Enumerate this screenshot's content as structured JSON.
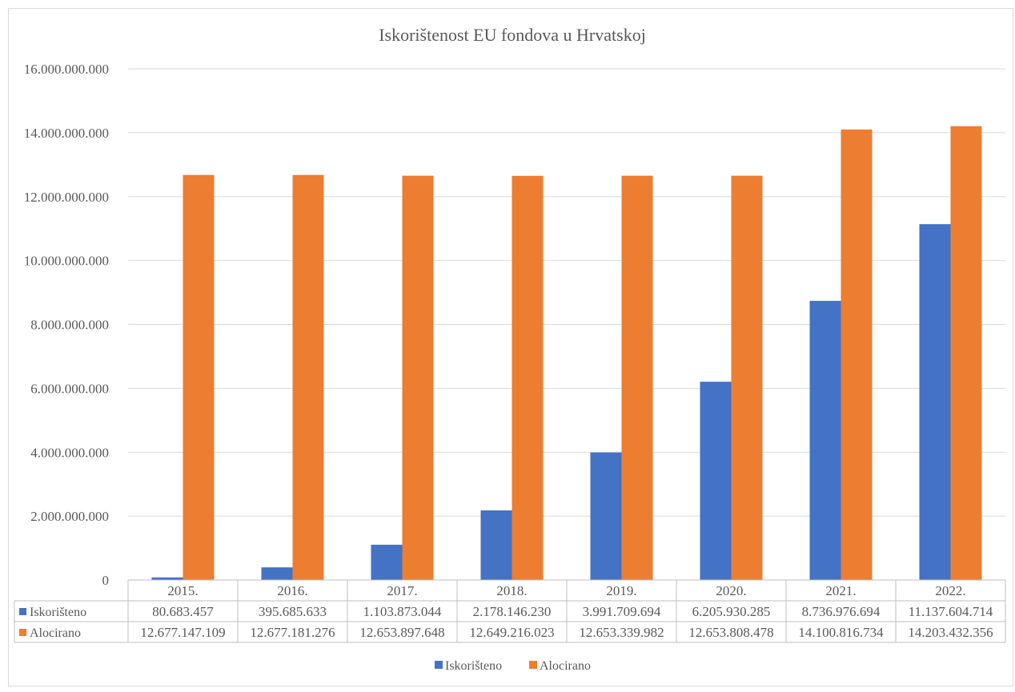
{
  "chart_data": {
    "type": "bar",
    "title": "Iskorištenost EU fondova u Hrvatskoj",
    "xlabel": "",
    "ylabel": "",
    "ylim": [
      0,
      16000000000
    ],
    "y_ticks": [
      0,
      2000000000,
      4000000000,
      6000000000,
      8000000000,
      10000000000,
      12000000000,
      14000000000,
      16000000000
    ],
    "y_tick_labels": [
      "0",
      "2.000.000.000",
      "4.000.000.000",
      "6.000.000.000",
      "8.000.000.000",
      "10.000.000.000",
      "12.000.000.000",
      "14.000.000.000",
      "16.000.000.000"
    ],
    "grid": true,
    "legend_position": "bottom",
    "categories": [
      "2015.",
      "2016.",
      "2017.",
      "2018.",
      "2019.",
      "2020.",
      "2021.",
      "2022."
    ],
    "series": [
      {
        "name": "Iskorišteno",
        "color": "#4472c4",
        "values": [
          80683457,
          395685633,
          1103873044,
          2178146230,
          3991709694,
          6205930285,
          8736976694,
          11137604714
        ],
        "labels": [
          "80.683.457",
          "395.685.633",
          "1.103.873.044",
          "2.178.146.230",
          "3.991.709.694",
          "6.205.930.285",
          "8.736.976.694",
          "11.137.604.714"
        ]
      },
      {
        "name": "Alocirano",
        "color": "#ed7d31",
        "values": [
          12677147109,
          12677181276,
          12653897648,
          12649216023,
          12653339982,
          12653808478,
          14100816734,
          14203432356
        ],
        "labels": [
          "12.677.147.109",
          "12.677.181.276",
          "12.653.897.648",
          "12.649.216.023",
          "12.653.339.982",
          "12.653.808.478",
          "14.100.816.734",
          "14.203.432.356"
        ]
      }
    ]
  }
}
